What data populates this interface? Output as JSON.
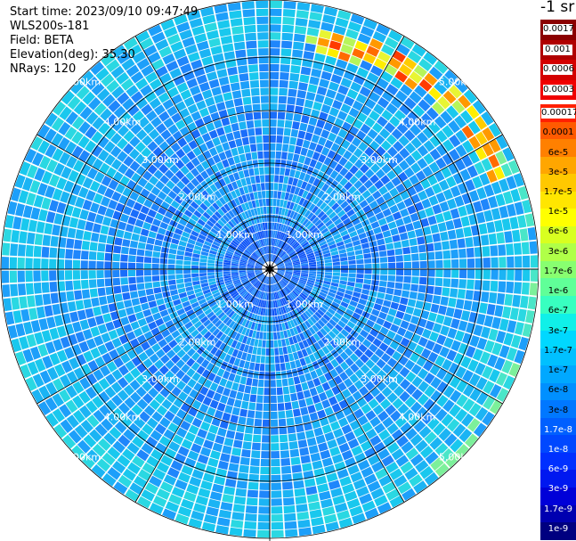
{
  "info": {
    "start_time": "Start time: 2023/09/10 09:47:49",
    "instrument": "WLS200s-181",
    "field": "Field: BETA",
    "elevation": "Elevation(deg): 35.30",
    "nrays": "NRays: 120"
  },
  "unit_label": "-1 sr",
  "range_labels": [
    "1.00km",
    "2.00km",
    "3.00km",
    "4.00km",
    "5.00km"
  ],
  "colorbar": {
    "top_group": {
      "colors": [
        "#8b0000",
        "#b00000",
        "#d40000",
        "#f00000"
      ],
      "labels": [
        "0.0017",
        "0.001",
        "0.0006",
        "0.0003"
      ]
    },
    "main_group": {
      "colors": [
        "#ff2000",
        "#ff5a00",
        "#ff8000",
        "#ffa600",
        "#ffc800",
        "#ffe600",
        "#ffff00",
        "#d8ff20",
        "#b0ff48",
        "#88ff70",
        "#60ff98",
        "#38ffc0",
        "#10f0e8",
        "#00d8ff",
        "#00c0ff",
        "#00a8ff",
        "#0090ff",
        "#0078ff",
        "#0060ff",
        "#0048ff",
        "#0030ff",
        "#0018f0",
        "#0000d8",
        "#0000b0",
        "#000080"
      ],
      "labels": [
        "0.00017",
        "0.0001",
        "6e-5",
        "3e-5",
        "1.7e-5",
        "1e-5",
        "6e-6",
        "3e-6",
        "1.7e-6",
        "1e-6",
        "6e-7",
        "3e-7",
        "1.7e-7",
        "1e-7",
        "6e-8",
        "3e-8",
        "1.7e-8",
        "1e-8",
        "6e-9",
        "3e-9",
        "1.7e-9",
        "1e-9"
      ]
    }
  }
}
